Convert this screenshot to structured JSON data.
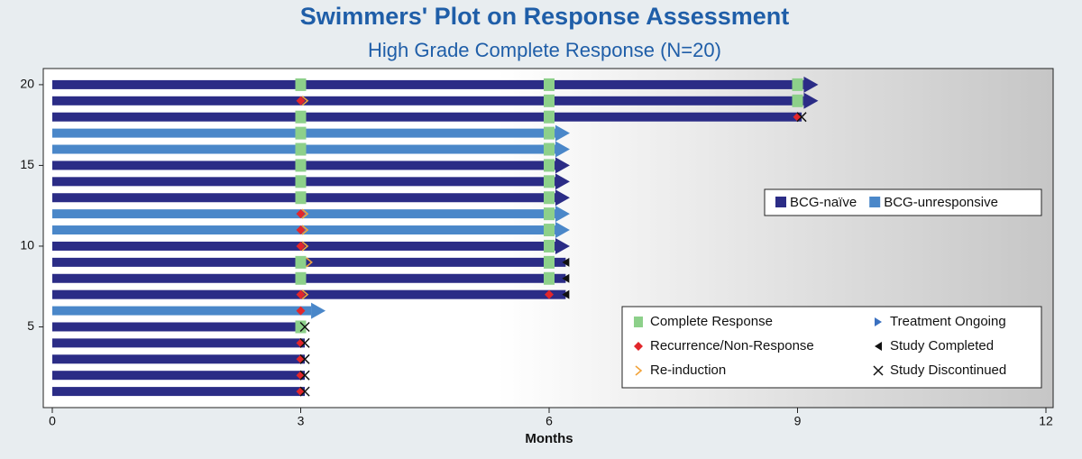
{
  "chart_data": {
    "type": "swimmer",
    "title": "Swimmers' Plot on Response Assessment",
    "subtitle": "High Grade Complete Response (N=20)",
    "xlabel": "Months",
    "xlim": [
      0,
      12
    ],
    "xticks": [
      0,
      3,
      6,
      9,
      12
    ],
    "ylim": [
      0,
      21
    ],
    "yticks": [
      5,
      10,
      15,
      20
    ],
    "series": [
      {
        "name": "BCG-naïve",
        "color": "#2b2c86"
      },
      {
        "name": "BCG-unresponsive",
        "color": "#4a87c9"
      }
    ],
    "markers": [
      {
        "key": "cr",
        "name": "Complete Response",
        "color": "#8dd08a"
      },
      {
        "key": "ongoing",
        "name": "Treatment Ongoing",
        "color": "#3a70c0"
      },
      {
        "key": "recurrence",
        "name": "Recurrence/Non-Response",
        "color": "#e2262b"
      },
      {
        "key": "completed",
        "name": "Study Completed",
        "color": "#111111"
      },
      {
        "key": "reinduction",
        "name": "Re-induction",
        "color": "#f2a33a"
      },
      {
        "key": "discontinued",
        "name": "Study Discontinued",
        "color": "#111111"
      }
    ],
    "subjects": [
      {
        "y": 1,
        "group": 0,
        "end": 3.05,
        "outcome": "discontinued",
        "cr": [],
        "recurrence": [
          3
        ],
        "reinduction": []
      },
      {
        "y": 2,
        "group": 0,
        "end": 3.05,
        "outcome": "discontinued",
        "cr": [],
        "recurrence": [
          3
        ],
        "reinduction": []
      },
      {
        "y": 3,
        "group": 0,
        "end": 3.05,
        "outcome": "discontinued",
        "cr": [],
        "recurrence": [
          3
        ],
        "reinduction": []
      },
      {
        "y": 4,
        "group": 0,
        "end": 3.05,
        "outcome": "discontinued",
        "cr": [],
        "recurrence": [
          3
        ],
        "reinduction": []
      },
      {
        "y": 5,
        "group": 0,
        "end": 3.05,
        "outcome": "discontinued",
        "cr": [
          3
        ],
        "recurrence": [],
        "reinduction": []
      },
      {
        "y": 6,
        "group": 1,
        "end": 3.3,
        "outcome": "ongoing",
        "cr": [],
        "recurrence": [
          3
        ],
        "reinduction": []
      },
      {
        "y": 7,
        "group": 0,
        "end": 6.2,
        "outcome": "completed",
        "cr": [],
        "recurrence": [
          3,
          6
        ],
        "reinduction": [
          3.05
        ]
      },
      {
        "y": 8,
        "group": 0,
        "end": 6.2,
        "outcome": "completed",
        "cr": [
          3,
          6
        ],
        "recurrence": [],
        "reinduction": []
      },
      {
        "y": 9,
        "group": 0,
        "end": 6.2,
        "outcome": "completed",
        "cr": [
          3,
          6
        ],
        "recurrence": [],
        "reinduction": [
          3.1
        ]
      },
      {
        "y": 10,
        "group": 0,
        "end": 6.25,
        "outcome": "ongoing",
        "cr": [
          6
        ],
        "recurrence": [
          3
        ],
        "reinduction": [
          3.05
        ]
      },
      {
        "y": 11,
        "group": 1,
        "end": 6.25,
        "outcome": "ongoing",
        "cr": [
          6
        ],
        "recurrence": [
          3
        ],
        "reinduction": [
          3.05
        ]
      },
      {
        "y": 12,
        "group": 1,
        "end": 6.25,
        "outcome": "ongoing",
        "cr": [
          6
        ],
        "recurrence": [
          3
        ],
        "reinduction": [
          3.05
        ]
      },
      {
        "y": 13,
        "group": 0,
        "end": 6.25,
        "outcome": "ongoing",
        "cr": [
          3,
          6
        ],
        "recurrence": [],
        "reinduction": []
      },
      {
        "y": 14,
        "group": 0,
        "end": 6.25,
        "outcome": "ongoing",
        "cr": [
          3,
          6
        ],
        "recurrence": [],
        "reinduction": []
      },
      {
        "y": 15,
        "group": 0,
        "end": 6.25,
        "outcome": "ongoing",
        "cr": [
          3,
          6
        ],
        "recurrence": [],
        "reinduction": []
      },
      {
        "y": 16,
        "group": 1,
        "end": 6.25,
        "outcome": "ongoing",
        "cr": [
          3,
          6
        ],
        "recurrence": [],
        "reinduction": []
      },
      {
        "y": 17,
        "group": 1,
        "end": 6.25,
        "outcome": "ongoing",
        "cr": [
          3,
          6
        ],
        "recurrence": [],
        "reinduction": []
      },
      {
        "y": 18,
        "group": 0,
        "end": 9.05,
        "outcome": "discontinued",
        "cr": [
          3,
          6
        ],
        "recurrence": [
          9
        ],
        "reinduction": []
      },
      {
        "y": 19,
        "group": 0,
        "end": 9.25,
        "outcome": "ongoing",
        "cr": [
          6,
          9
        ],
        "recurrence": [
          3
        ],
        "reinduction": [
          3.05
        ]
      },
      {
        "y": 20,
        "group": 0,
        "end": 9.25,
        "outcome": "ongoing",
        "cr": [
          3,
          6,
          9
        ],
        "recurrence": [],
        "reinduction": []
      }
    ]
  }
}
